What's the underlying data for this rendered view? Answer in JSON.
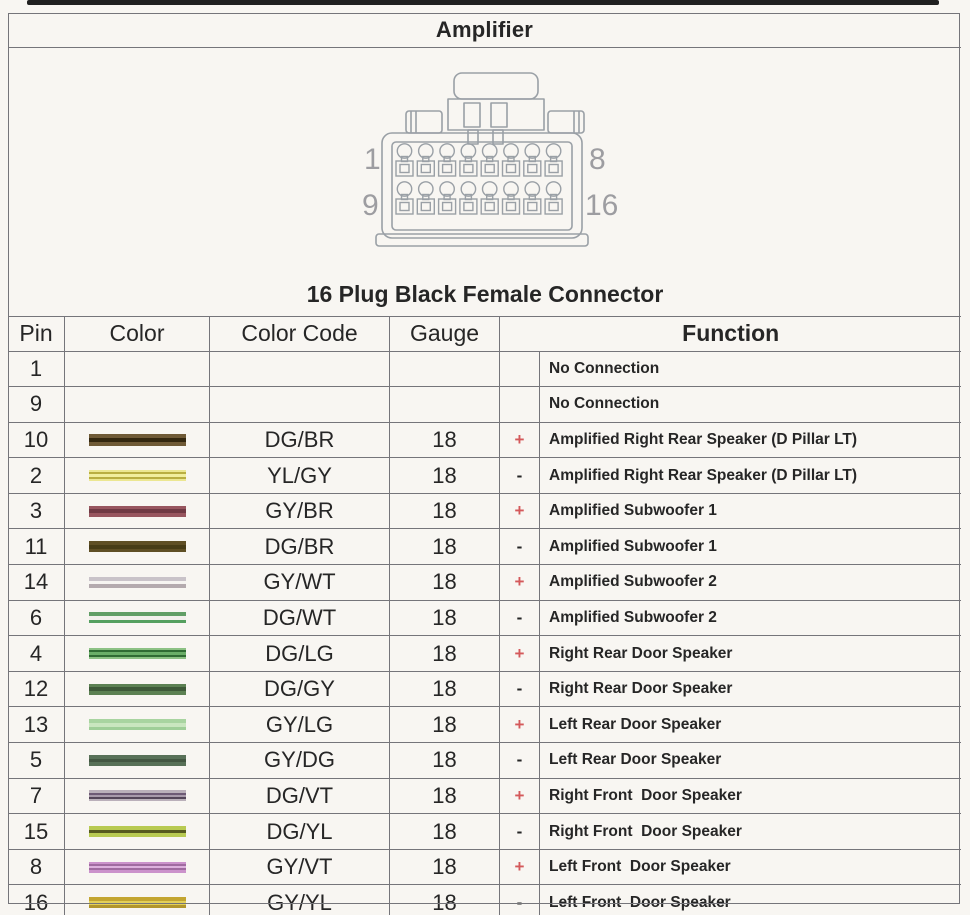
{
  "page": {
    "title": "Amplifier",
    "subtitle": "16 Plug Black Female Connector"
  },
  "connector": {
    "pin_rows": 2,
    "pins_per_row": 8,
    "labels": {
      "top_left": "1",
      "top_right": "8",
      "bottom_left": "9",
      "bottom_right": "16"
    }
  },
  "table": {
    "headers": {
      "pin": "Pin",
      "color": "Color",
      "color_code": "Color Code",
      "gauge": "Gauge",
      "function": "Function"
    },
    "polarity_colors": {
      "plus": "#d4595b",
      "minus": "#252525"
    },
    "rows": [
      {
        "pin": "1",
        "color_stripes": [],
        "color_code": "",
        "gauge": "",
        "polarity": "",
        "function": "No Connection"
      },
      {
        "pin": "9",
        "color_stripes": [],
        "color_code": "",
        "gauge": "",
        "polarity": "",
        "function": "No Connection"
      },
      {
        "pin": "10",
        "color_stripes": [
          "#6f5a36",
          "#33270f",
          "#6f5a36"
        ],
        "color_code": "DG/BR",
        "gauge": "18",
        "polarity": "+",
        "function": "Amplified Right Rear Speaker (D Pillar LT)"
      },
      {
        "pin": "2",
        "color_stripes": [
          "#ece792",
          "#b9ae42",
          "#f1ee9e",
          "#b9ae42",
          "#ece792"
        ],
        "color_code": "YL/GY",
        "gauge": "18",
        "polarity": "-",
        "function": "Amplified Right Rear Speaker (D Pillar LT)"
      },
      {
        "pin": "3",
        "color_stripes": [
          "#98565f",
          "#703a44",
          "#98565f"
        ],
        "color_code": "GY/BR",
        "gauge": "18",
        "polarity": "+",
        "function": "Amplified Subwoofer 1"
      },
      {
        "pin": "11",
        "color_stripes": [
          "#5f4f25",
          "#473c17",
          "#5f4f25"
        ],
        "color_code": "DG/BR",
        "gauge": "18",
        "polarity": "-",
        "function": "Amplified Subwoofer 1"
      },
      {
        "pin": "14",
        "color_stripes": [
          "#c9c3c9",
          "#f6f4f1",
          "#b4aaae"
        ],
        "color_code": "GY/WT",
        "gauge": "18",
        "polarity": "+",
        "function": "Amplified Subwoofer 2"
      },
      {
        "pin": "6",
        "color_stripes": [
          "#619e66",
          "#f2f0ec",
          "#55a060"
        ],
        "color_code": "DG/WT",
        "gauge": "18",
        "polarity": "-",
        "function": "Amplified Subwoofer 2"
      },
      {
        "pin": "4",
        "color_stripes": [
          "#8cc184",
          "#2f6b33",
          "#6aae68",
          "#2f6b33",
          "#8cc184"
        ],
        "color_code": "DG/LG",
        "gauge": "18",
        "polarity": "+",
        "function": "Right Rear Door Speaker"
      },
      {
        "pin": "12",
        "color_stripes": [
          "#5c8153",
          "#3e5a39",
          "#5c8153"
        ],
        "color_code": "DG/GY",
        "gauge": "18",
        "polarity": "-",
        "function": "Right Rear Door Speaker"
      },
      {
        "pin": "13",
        "color_stripes": [
          "#a8d4a0",
          "#c9e6bf",
          "#9fce98"
        ],
        "color_code": "GY/LG",
        "gauge": "18",
        "polarity": "+",
        "function": "Left Rear Door Speaker"
      },
      {
        "pin": "5",
        "color_stripes": [
          "#587158",
          "#435742",
          "#587158"
        ],
        "color_code": "GY/DG",
        "gauge": "18",
        "polarity": "-",
        "function": "Left Rear Door Speaker"
      },
      {
        "pin": "7",
        "color_stripes": [
          "#bab0ba",
          "#6d5a75",
          "#a89aab",
          "#544659",
          "#bab0ba"
        ],
        "color_code": "DG/VT",
        "gauge": "18",
        "polarity": "+",
        "function": "Right Front  Door Speaker"
      },
      {
        "pin": "15",
        "color_stripes": [
          "#b8ca52",
          "#565a1f",
          "#b8ca52"
        ],
        "color_code": "DG/YL",
        "gauge": "18",
        "polarity": "-",
        "function": "Right Front  Door Speaker"
      },
      {
        "pin": "8",
        "color_stripes": [
          "#cb92cb",
          "#a06ba0",
          "#ddb0dd",
          "#a06ba0",
          "#cb92cb"
        ],
        "color_code": "GY/VT",
        "gauge": "18",
        "polarity": "+",
        "function": "Left Front  Door Speaker"
      },
      {
        "pin": "16",
        "color_stripes": [
          "#c3a531",
          "#e3d058",
          "#b2962c"
        ],
        "color_code": "GY/YL",
        "gauge": "18",
        "polarity": "-",
        "function": "Left Front  Door Speaker"
      }
    ]
  }
}
